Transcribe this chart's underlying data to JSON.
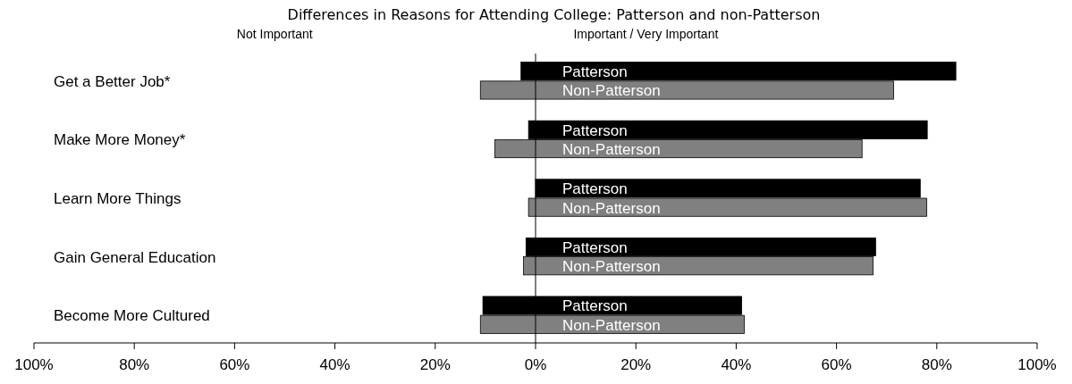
{
  "chart_data": {
    "type": "bar",
    "orientation": "horizontal",
    "title": "Differences in Reasons for Attending College:  Patterson and non-Patterson",
    "annotations": [
      "Not Important",
      "Important / Very Important"
    ],
    "categories": [
      "Get a Better Job*",
      "Make More Money*",
      "Learn More Things",
      "Gain General Education",
      "Become More Cultured"
    ],
    "series": [
      {
        "name": "Patterson",
        "color": "#000000",
        "base": [
          -2.9,
          -1.4,
          0,
          -1.9,
          -10.5
        ],
        "values": [
          86.7,
          79.5,
          76.7,
          69.7,
          51.6
        ]
      },
      {
        "name": "Non-Patterson",
        "color": "#808080",
        "base": [
          -11.0,
          -8.1,
          -1.4,
          -2.4,
          -11.0
        ],
        "values": [
          82.4,
          73.2,
          79.4,
          69.7,
          52.6
        ]
      }
    ],
    "xlim": [
      -100,
      100
    ],
    "xticks": [
      {
        "value": -100,
        "label": "100%"
      },
      {
        "value": -80,
        "label": "80%"
      },
      {
        "value": -60,
        "label": "60%"
      },
      {
        "value": -40,
        "label": "40%"
      },
      {
        "value": -20,
        "label": "20%"
      },
      {
        "value": 0,
        "label": "0%"
      },
      {
        "value": 20,
        "label": "20%"
      },
      {
        "value": 40,
        "label": "40%"
      },
      {
        "value": 60,
        "label": "60%"
      },
      {
        "value": 80,
        "label": "80%"
      },
      {
        "value": 100,
        "label": "100%"
      }
    ],
    "ref_lines": [
      {
        "axis": "x",
        "value": 0,
        "color": "#000000"
      }
    ],
    "grid": false
  }
}
